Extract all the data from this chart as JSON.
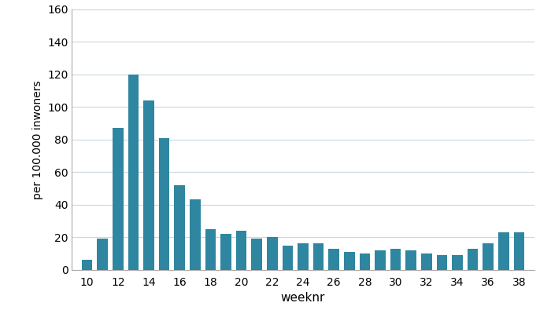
{
  "weeks": [
    10,
    11,
    12,
    13,
    14,
    15,
    16,
    17,
    18,
    19,
    20,
    21,
    22,
    23,
    24,
    25,
    26,
    27,
    28,
    29,
    30,
    31,
    32,
    33,
    34,
    35,
    36,
    37,
    38
  ],
  "values": [
    6,
    19,
    87,
    120,
    104,
    81,
    52,
    43,
    25,
    22,
    24,
    19,
    20,
    15,
    16,
    16,
    13,
    11,
    10,
    12,
    13,
    12,
    10,
    9,
    9,
    13,
    16,
    23,
    23
  ],
  "bar_color": "#2e86a0",
  "xlabel": "weeknr",
  "ylabel": "per 100.000 inwoners",
  "ylim": [
    0,
    160
  ],
  "yticks": [
    0,
    20,
    40,
    60,
    80,
    100,
    120,
    140,
    160
  ],
  "xticks": [
    10,
    12,
    14,
    16,
    18,
    20,
    22,
    24,
    26,
    28,
    30,
    32,
    34,
    36,
    38
  ],
  "background_color": "#ffffff",
  "grid_color": "#c8d8e0",
  "bar_width": 0.7,
  "xlabel_fontsize": 11,
  "ylabel_fontsize": 10,
  "tick_fontsize": 10
}
